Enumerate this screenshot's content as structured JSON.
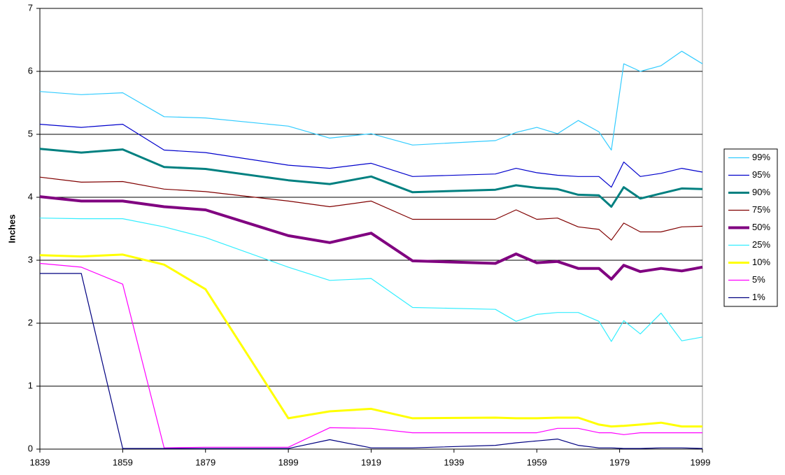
{
  "chart_data": {
    "type": "line",
    "y_label": "Inches",
    "x": [
      1839,
      1849,
      1859,
      1869,
      1879,
      1899,
      1909,
      1919,
      1929,
      1949,
      1954,
      1959,
      1964,
      1969,
      1974,
      1977,
      1980,
      1984,
      1989,
      1994,
      1999
    ],
    "xlim": [
      1839,
      1999
    ],
    "xticks": [
      1839,
      1859,
      1879,
      1899,
      1919,
      1939,
      1959,
      1979,
      1999
    ],
    "ylim": [
      0,
      7
    ],
    "yticks": [
      0,
      1,
      2,
      3,
      4,
      5,
      6,
      7
    ],
    "grid": true,
    "legend": "right",
    "series": [
      {
        "name": "99%",
        "color": "#33ccff",
        "width": 1.2,
        "values": [
          5.68,
          5.63,
          5.66,
          5.28,
          5.26,
          5.13,
          4.94,
          5.01,
          4.83,
          4.9,
          5.03,
          5.11,
          5.01,
          5.22,
          5.04,
          4.75,
          6.12,
          6.0,
          6.09,
          6.32,
          6.12
        ]
      },
      {
        "name": "95%",
        "color": "#0000cc",
        "width": 1.2,
        "values": [
          5.16,
          5.11,
          5.16,
          4.75,
          4.71,
          4.51,
          4.46,
          4.54,
          4.33,
          4.37,
          4.46,
          4.39,
          4.35,
          4.33,
          4.33,
          4.16,
          4.56,
          4.33,
          4.38,
          4.46,
          4.4
        ]
      },
      {
        "name": "90%",
        "color": "#008080",
        "width": 3,
        "values": [
          4.77,
          4.71,
          4.76,
          4.48,
          4.45,
          4.27,
          4.21,
          4.33,
          4.08,
          4.12,
          4.19,
          4.15,
          4.13,
          4.04,
          4.03,
          3.85,
          4.16,
          3.98,
          4.06,
          4.14,
          4.13
        ]
      },
      {
        "name": "75%",
        "color": "#800000",
        "width": 1.2,
        "values": [
          4.32,
          4.24,
          4.25,
          4.13,
          4.09,
          3.94,
          3.85,
          3.94,
          3.65,
          3.65,
          3.8,
          3.65,
          3.67,
          3.53,
          3.49,
          3.32,
          3.59,
          3.45,
          3.45,
          3.53,
          3.54
        ]
      },
      {
        "name": "50%",
        "color": "#800080",
        "width": 4,
        "values": [
          4.01,
          3.94,
          3.94,
          3.85,
          3.8,
          3.39,
          3.28,
          3.43,
          2.99,
          2.95,
          3.1,
          2.96,
          2.98,
          2.87,
          2.87,
          2.7,
          2.92,
          2.82,
          2.87,
          2.83,
          2.89
        ]
      },
      {
        "name": "25%",
        "color": "#33eeff",
        "width": 1.2,
        "values": [
          3.67,
          3.66,
          3.66,
          3.53,
          3.36,
          2.89,
          2.68,
          2.71,
          2.25,
          2.22,
          2.03,
          2.14,
          2.17,
          2.17,
          2.03,
          1.71,
          2.04,
          1.83,
          2.16,
          1.72,
          1.78
        ]
      },
      {
        "name": "10%",
        "color": "#ffff00",
        "width": 3,
        "values": [
          3.08,
          3.06,
          3.09,
          2.93,
          2.54,
          0.49,
          0.6,
          0.64,
          0.49,
          0.5,
          0.49,
          0.49,
          0.5,
          0.5,
          0.39,
          0.36,
          0.37,
          0.39,
          0.42,
          0.36,
          0.36
        ]
      },
      {
        "name": "5%",
        "color": "#ff00ff",
        "width": 1.2,
        "values": [
          2.95,
          2.89,
          2.62,
          0.02,
          0.03,
          0.03,
          0.34,
          0.33,
          0.26,
          0.26,
          0.26,
          0.26,
          0.33,
          0.33,
          0.26,
          0.26,
          0.23,
          0.26,
          0.26,
          0.26,
          0.26
        ]
      },
      {
        "name": "1%",
        "color": "#000080",
        "width": 1.2,
        "values": [
          2.79,
          2.79,
          0.01,
          0.01,
          0.01,
          0.01,
          0.15,
          0.02,
          0.02,
          0.06,
          0.1,
          0.13,
          0.16,
          0.06,
          0.02,
          0.02,
          0.01,
          0.01,
          0.02,
          0.02,
          0.01
        ]
      }
    ]
  }
}
